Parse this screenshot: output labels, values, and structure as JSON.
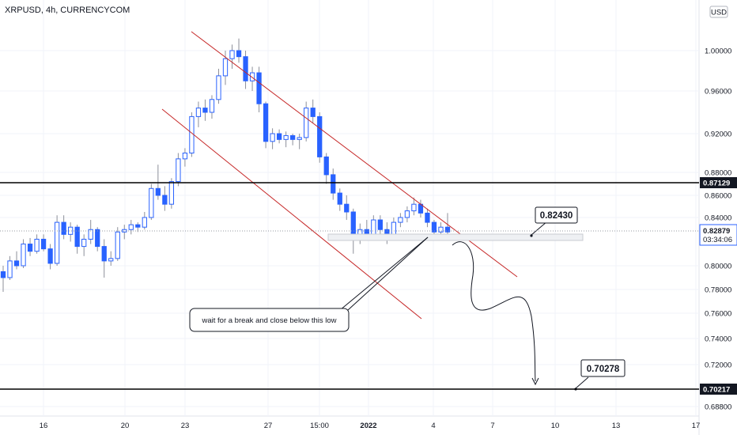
{
  "header": {
    "title": "XRPUSD, 4h, CURRENCYCOM"
  },
  "currency_button": {
    "label": "USD"
  },
  "chart_data": {
    "type": "candlestick",
    "title": "XRPUSD, 4h, CURRENCYCOM",
    "y_ticks": [
      "1.00000",
      "0.96000",
      "0.92000",
      "0.88000",
      "0.86000",
      "0.84000",
      "0.80000",
      "0.78000",
      "0.76000",
      "0.74000",
      "0.72000",
      "0.68800"
    ],
    "y_tick_values": [
      1.0,
      0.96,
      0.92,
      0.88,
      0.86,
      0.84,
      0.8,
      0.78,
      0.76,
      0.74,
      0.72,
      0.688
    ],
    "x_ticks": [
      "16",
      "20",
      "23",
      "27",
      "15:00",
      "2022",
      "4",
      "7",
      "10",
      "13",
      "17"
    ],
    "series_colors": {
      "up": "#2962ff",
      "down": "#2962ff",
      "hollow": "#ffffff"
    },
    "candles": [
      [
        0.795,
        0.8,
        0.778,
        0.79
      ],
      [
        0.79,
        0.808,
        0.788,
        0.804
      ],
      [
        0.804,
        0.812,
        0.797,
        0.8
      ],
      [
        0.8,
        0.822,
        0.798,
        0.818
      ],
      [
        0.818,
        0.823,
        0.808,
        0.812
      ],
      [
        0.812,
        0.826,
        0.81,
        0.822
      ],
      [
        0.822,
        0.826,
        0.812,
        0.814
      ],
      [
        0.814,
        0.818,
        0.797,
        0.802
      ],
      [
        0.802,
        0.842,
        0.8,
        0.836
      ],
      [
        0.836,
        0.842,
        0.822,
        0.826
      ],
      [
        0.826,
        0.836,
        0.82,
        0.832
      ],
      [
        0.832,
        0.834,
        0.81,
        0.816
      ],
      [
        0.816,
        0.826,
        0.808,
        0.822
      ],
      [
        0.822,
        0.838,
        0.818,
        0.83
      ],
      [
        0.83,
        0.832,
        0.812,
        0.816
      ],
      [
        0.816,
        0.822,
        0.79,
        0.804
      ],
      [
        0.804,
        0.812,
        0.8,
        0.806
      ],
      [
        0.806,
        0.832,
        0.804,
        0.828
      ],
      [
        0.828,
        0.834,
        0.822,
        0.83
      ],
      [
        0.83,
        0.838,
        0.826,
        0.834
      ],
      [
        0.834,
        0.836,
        0.828,
        0.832
      ],
      [
        0.832,
        0.845,
        0.83,
        0.84
      ],
      [
        0.84,
        0.87,
        0.838,
        0.866
      ],
      [
        0.866,
        0.888,
        0.856,
        0.86
      ],
      [
        0.86,
        0.868,
        0.846,
        0.852
      ],
      [
        0.852,
        0.875,
        0.848,
        0.872
      ],
      [
        0.872,
        0.9,
        0.868,
        0.894
      ],
      [
        0.894,
        0.905,
        0.886,
        0.9
      ],
      [
        0.9,
        0.94,
        0.896,
        0.936
      ],
      [
        0.936,
        0.95,
        0.926,
        0.944
      ],
      [
        0.944,
        0.952,
        0.932,
        0.94
      ],
      [
        0.94,
        0.956,
        0.934,
        0.952
      ],
      [
        0.952,
        0.982,
        0.948,
        0.975
      ],
      [
        0.975,
        1.0,
        0.966,
        0.992
      ],
      [
        0.992,
        1.006,
        0.982,
        1.0
      ],
      [
        1.0,
        1.012,
        0.988,
        0.994
      ],
      [
        0.994,
        1.0,
        0.962,
        0.97
      ],
      [
        0.97,
        0.984,
        0.96,
        0.978
      ],
      [
        0.978,
        0.984,
        0.94,
        0.948
      ],
      [
        0.948,
        0.95,
        0.905,
        0.912
      ],
      [
        0.912,
        0.925,
        0.904,
        0.92
      ],
      [
        0.92,
        0.924,
        0.91,
        0.914
      ],
      [
        0.914,
        0.922,
        0.906,
        0.918
      ],
      [
        0.918,
        0.92,
        0.908,
        0.914
      ],
      [
        0.914,
        0.92,
        0.904,
        0.916
      ],
      [
        0.916,
        0.95,
        0.912,
        0.944
      ],
      [
        0.944,
        0.952,
        0.93,
        0.936
      ],
      [
        0.936,
        0.94,
        0.89,
        0.896
      ],
      [
        0.896,
        0.9,
        0.87,
        0.878
      ],
      [
        0.878,
        0.884,
        0.856,
        0.862
      ],
      [
        0.862,
        0.866,
        0.846,
        0.852
      ],
      [
        0.852,
        0.86,
        0.838,
        0.845
      ],
      [
        0.845,
        0.848,
        0.81,
        0.822
      ],
      [
        0.822,
        0.835,
        0.818,
        0.83
      ],
      [
        0.83,
        0.838,
        0.822,
        0.826
      ],
      [
        0.826,
        0.842,
        0.822,
        0.838
      ],
      [
        0.838,
        0.842,
        0.826,
        0.83
      ],
      [
        0.83,
        0.836,
        0.818,
        0.826
      ],
      [
        0.826,
        0.84,
        0.822,
        0.836
      ],
      [
        0.836,
        0.844,
        0.832,
        0.84
      ],
      [
        0.84,
        0.85,
        0.836,
        0.846
      ],
      [
        0.846,
        0.858,
        0.842,
        0.852
      ],
      [
        0.852,
        0.856,
        0.84,
        0.844
      ],
      [
        0.844,
        0.848,
        0.832,
        0.836
      ],
      [
        0.836,
        0.838,
        0.824,
        0.828
      ],
      [
        0.828,
        0.836,
        0.824,
        0.832
      ],
      [
        0.832,
        0.844,
        0.826,
        0.828
      ]
    ],
    "price_lines": [
      {
        "value": 0.87129,
        "label": "0.87129",
        "color": "#000000"
      },
      {
        "value": 0.70217,
        "label": "0.70217",
        "color": "#000000"
      }
    ],
    "current_price": {
      "value": 0.82879,
      "label": "0.82879",
      "countdown": "03:34:06"
    },
    "annotations": [
      {
        "text": "0.82430",
        "kind": "price-callout"
      },
      {
        "text": "0.70278",
        "kind": "price-callout"
      },
      {
        "text": "wait for a break and close below this low",
        "kind": "note"
      }
    ],
    "channel_color": "#c62828"
  }
}
